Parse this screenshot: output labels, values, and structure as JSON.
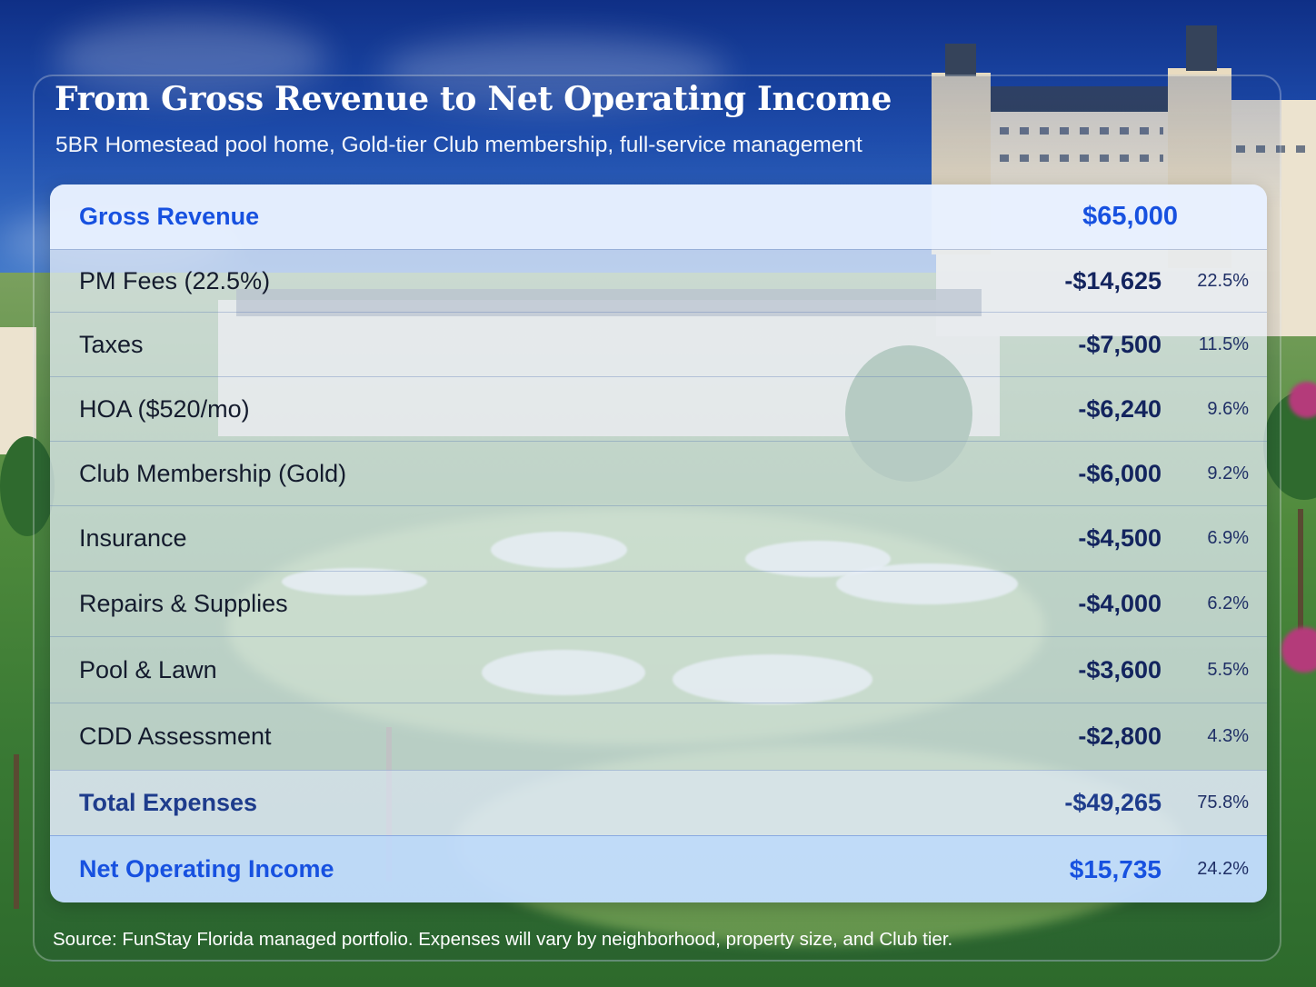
{
  "title": "From Gross Revenue to Net Operating Income",
  "subtitle": "5BR Homestead pool home, Gold-tier Club membership, full-service management",
  "gross": {
    "label": "Gross Revenue",
    "amount": "$65,000"
  },
  "expenses": [
    {
      "label": "PM Fees (22.5%)",
      "amount": "-$14,625",
      "pct": "22.5%"
    },
    {
      "label": "Taxes",
      "amount": "-$7,500",
      "pct": "11.5%"
    },
    {
      "label": "HOA ($520/mo)",
      "amount": "-$6,240",
      "pct": "9.6%"
    },
    {
      "label": "Club Membership (Gold)",
      "amount": "-$6,000",
      "pct": "9.2%"
    },
    {
      "label": "Insurance",
      "amount": "-$4,500",
      "pct": "6.9%"
    },
    {
      "label": "Repairs & Supplies",
      "amount": "-$4,000",
      "pct": "6.2%"
    },
    {
      "label": "Pool & Lawn",
      "amount": "-$3,600",
      "pct": "5.5%"
    },
    {
      "label": "CDD Assessment",
      "amount": "-$2,800",
      "pct": "4.3%"
    }
  ],
  "total": {
    "label": "Total Expenses",
    "amount": "-$49,265",
    "pct": "75.8%"
  },
  "net": {
    "label": "Net Operating Income",
    "amount": "$15,735",
    "pct": "24.2%"
  },
  "source": "Source: FunStay Florida managed portfolio. Expenses will vary by neighborhood, property size, and Club tier.",
  "colors": {
    "accent": "#1751e0",
    "amount": "#13245e",
    "sky": "#1f4fb0",
    "grass": "#3a7a34"
  }
}
